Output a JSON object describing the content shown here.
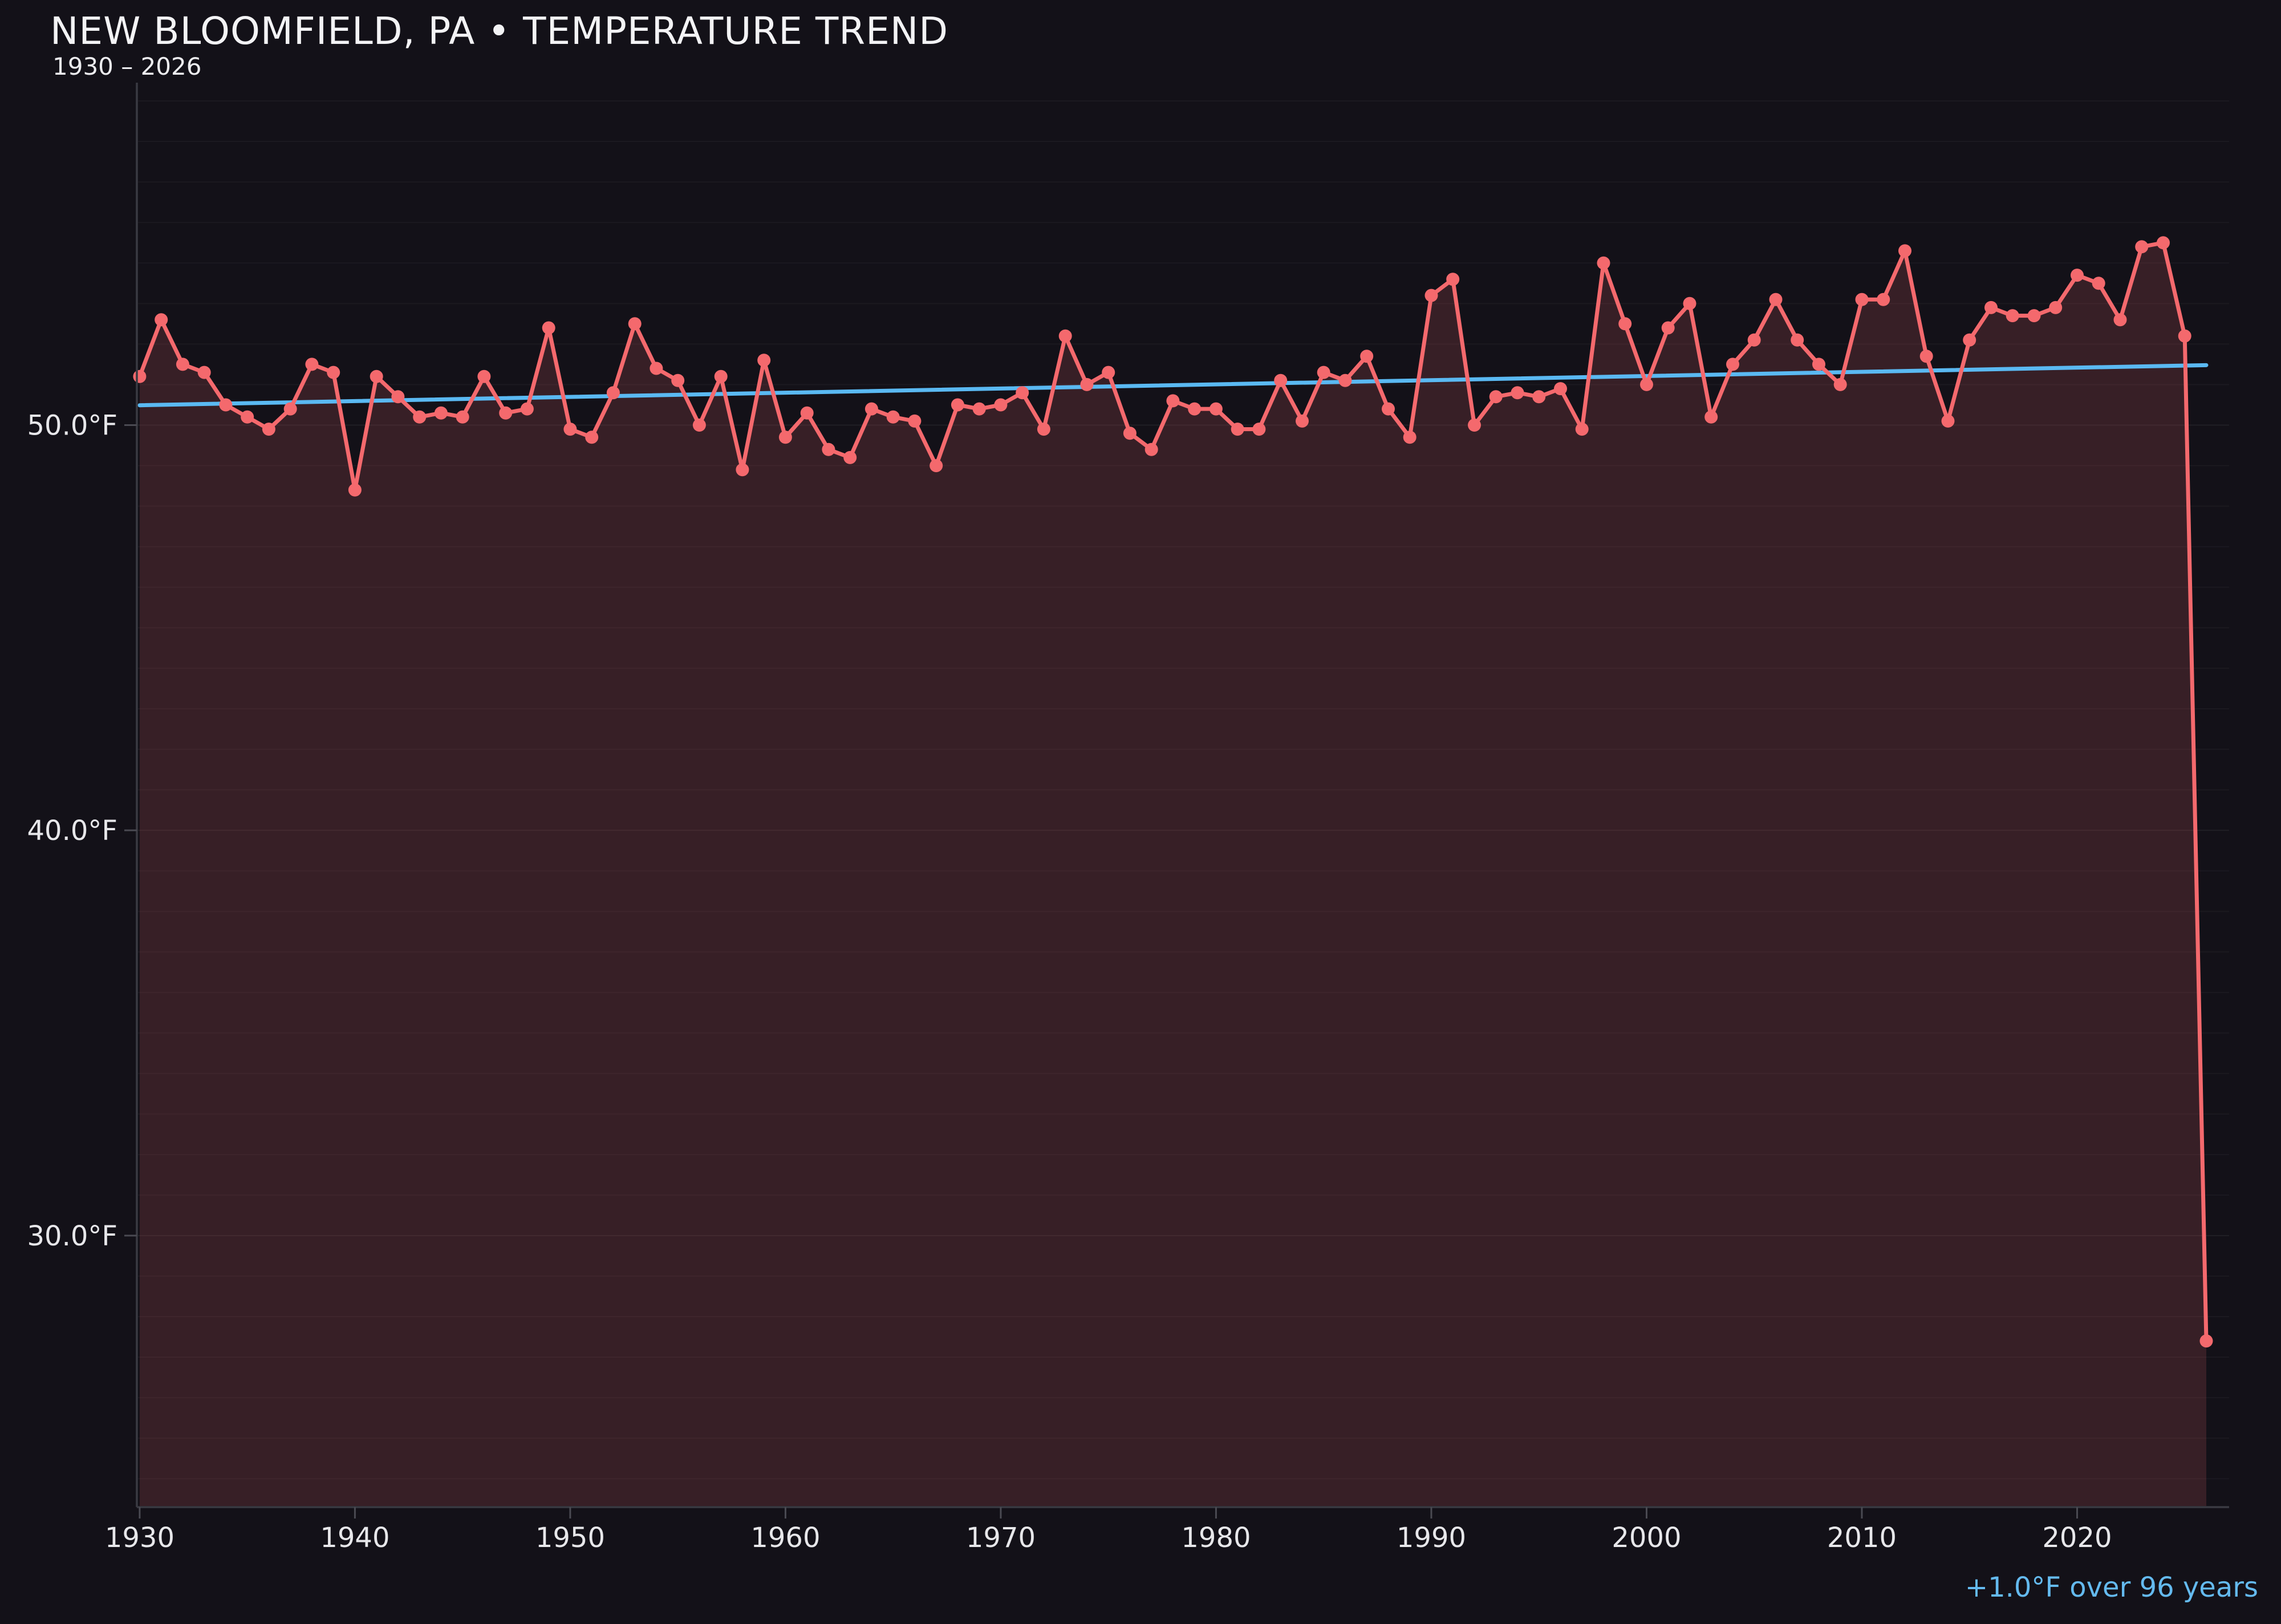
{
  "header": {
    "title": "NEW BLOOMFIELD, PA • TEMPERATURE TREND",
    "subtitle": "1930 – 2026"
  },
  "footer": {
    "trend_annotation": "+1.0°F over 96 years"
  },
  "colors": {
    "background": "#131118",
    "series_line": "#F4696D",
    "series_fill_rgba": "rgba(244,106,110,0.165)",
    "trend_line": "#5AB9F2",
    "annotation_text": "#64BAEF",
    "axis_spine": "#3A3A42",
    "tick_mark": "#4A4A52",
    "tick_label": "#E7E7EA",
    "gridline_minor": "rgba(255,255,255,0.035)",
    "gridline_major": "rgba(255,255,255,0.06)"
  },
  "chart_data": {
    "type": "line",
    "title": "NEW BLOOMFIELD, PA • TEMPERATURE TREND",
    "subtitle": "1930 – 2026",
    "xlabel": "",
    "ylabel": "",
    "legend": "none",
    "grid": {
      "horizontal_step_f": 1,
      "visible": true
    },
    "xlim": [
      1929.87,
      2027.06
    ],
    "ylim": [
      23.3,
      58.45
    ],
    "x_tick_years": [
      1930,
      1940,
      1950,
      1960,
      1970,
      1980,
      1990,
      2000,
      2010,
      2020
    ],
    "x_tick_labels": [
      "1930",
      "1940",
      "1950",
      "1960",
      "1970",
      "1980",
      "1990",
      "2000",
      "2010",
      "2020"
    ],
    "y_tick_values": [
      50,
      40,
      30
    ],
    "y_tick_labels": [
      "50.0°F",
      "40.0°F",
      "30.0°F"
    ],
    "start_year": 1930,
    "end_year": 2026,
    "series": [
      {
        "name": "annual-mean-temperature-f",
        "color": "#F4696D",
        "values": [
          51.2,
          52.6,
          51.5,
          51.3,
          50.5,
          50.2,
          49.9,
          50.4,
          51.5,
          51.3,
          48.4,
          51.2,
          50.7,
          50.2,
          50.3,
          50.2,
          51.2,
          50.3,
          50.4,
          52.4,
          49.9,
          49.7,
          50.8,
          52.5,
          51.4,
          51.1,
          50.0,
          51.2,
          48.9,
          51.6,
          49.7,
          50.3,
          49.4,
          49.2,
          50.4,
          50.2,
          50.1,
          49.0,
          50.5,
          50.4,
          50.5,
          50.8,
          49.9,
          52.2,
          51.0,
          51.3,
          49.8,
          49.4,
          50.6,
          50.4,
          50.4,
          49.9,
          49.9,
          51.1,
          50.1,
          51.3,
          51.1,
          51.7,
          50.4,
          49.7,
          53.2,
          53.6,
          50.0,
          50.7,
          50.8,
          50.7,
          50.9,
          49.9,
          54.0,
          52.5,
          51.0,
          52.4,
          53.0,
          50.2,
          51.5,
          52.1,
          53.1,
          52.1,
          51.5,
          51.0,
          53.1,
          53.1,
          54.3,
          51.7,
          50.1,
          52.1,
          52.9,
          52.7,
          52.7,
          52.9,
          53.7,
          53.5,
          52.6,
          54.4,
          54.5,
          52.2,
          27.4
        ]
      },
      {
        "name": "linear-trend",
        "color": "#5AB9F2",
        "points": [
          {
            "year": 1930,
            "value": 50.49
          },
          {
            "year": 2026,
            "value": 51.48
          }
        ],
        "label": "+1.0°F over 96 years"
      }
    ]
  }
}
